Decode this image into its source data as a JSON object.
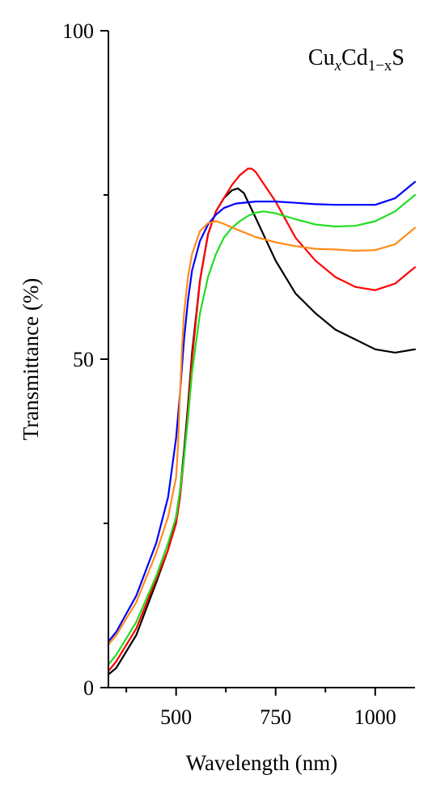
{
  "chart_data": {
    "type": "line",
    "xlabel": "Wavelength (nm)",
    "ylabel": "Transmittance (%)",
    "xlim": [
      330,
      1100
    ],
    "ylim": [
      0,
      100
    ],
    "x_ticks": [
      {
        "value": 500,
        "label": "500"
      },
      {
        "value": 750,
        "label": "750"
      },
      {
        "value": 1000,
        "label": "1000"
      }
    ],
    "x_minor_ticks": [
      375,
      625,
      875
    ],
    "y_ticks": [
      {
        "value": 0,
        "label": "0"
      },
      {
        "value": 50,
        "label": "50"
      },
      {
        "value": 100,
        "label": "100"
      }
    ],
    "y_minor_ticks": [
      25,
      75
    ],
    "annotation": {
      "base1": "Cu",
      "sub1": "x",
      "base2": "Cd",
      "sub2": "1−x",
      "base3": "S"
    },
    "grid": false,
    "legend": "none",
    "series": [
      {
        "color": "#000000",
        "x": [
          330,
          350,
          400,
          450,
          480,
          500,
          510,
          520,
          530,
          540,
          560,
          580,
          600,
          620,
          640,
          655,
          670,
          700,
          750,
          800,
          850,
          900,
          950,
          1000,
          1050,
          1100
        ],
        "y": [
          2,
          3,
          8,
          16,
          21,
          26,
          30,
          36,
          43,
          51,
          62,
          69,
          72.5,
          74.5,
          75.7,
          76,
          75.3,
          71.5,
          65,
          60,
          57,
          54.5,
          53,
          51.5,
          51,
          51.5
        ]
      },
      {
        "color": "#ff0000",
        "x": [
          330,
          350,
          400,
          450,
          480,
          500,
          510,
          520,
          530,
          540,
          560,
          580,
          600,
          620,
          640,
          660,
          680,
          690,
          700,
          750,
          800,
          850,
          900,
          950,
          1000,
          1050,
          1100
        ],
        "y": [
          2.5,
          4,
          9,
          16.5,
          21,
          25,
          29,
          35,
          42,
          50,
          62,
          69,
          72.5,
          74.5,
          76.5,
          78,
          79,
          79,
          78.5,
          74,
          68.5,
          65,
          62.5,
          61,
          60.5,
          61.5,
          64
        ]
      },
      {
        "color": "#22dd22",
        "x": [
          330,
          350,
          400,
          450,
          480,
          500,
          510,
          520,
          530,
          540,
          560,
          580,
          600,
          620,
          640,
          660,
          680,
          700,
          720,
          750,
          800,
          850,
          900,
          950,
          1000,
          1050,
          1100
        ],
        "y": [
          3.5,
          5,
          10,
          17,
          22,
          26,
          30,
          35,
          41,
          48,
          57,
          62.5,
          66,
          68.5,
          70,
          71,
          71.8,
          72.3,
          72.5,
          72.2,
          71.3,
          70.5,
          70.2,
          70.3,
          71,
          72.5,
          75
        ]
      },
      {
        "color": "#0000ff",
        "x": [
          330,
          350,
          400,
          450,
          480,
          500,
          510,
          520,
          530,
          540,
          560,
          580,
          600,
          620,
          650,
          700,
          750,
          800,
          850,
          900,
          950,
          1000,
          1050,
          1100
        ],
        "y": [
          7,
          8.5,
          14,
          22,
          29,
          38,
          45,
          53,
          59,
          63.5,
          68,
          70.5,
          72,
          73,
          73.7,
          74,
          74,
          73.8,
          73.6,
          73.5,
          73.5,
          73.5,
          74.5,
          77
        ]
      },
      {
        "color": "#ff8c1a",
        "x": [
          330,
          350,
          400,
          450,
          480,
          500,
          505,
          510,
          515,
          520,
          530,
          540,
          560,
          580,
          600,
          620,
          650,
          700,
          750,
          800,
          850,
          900,
          950,
          1000,
          1050,
          1100
        ],
        "y": [
          6.5,
          8,
          13,
          20.5,
          26,
          32,
          37,
          45,
          52,
          57,
          62.5,
          66,
          69.5,
          70.7,
          71,
          70.6,
          69.8,
          68.6,
          67.8,
          67.2,
          66.8,
          66.7,
          66.5,
          66.6,
          67.5,
          70
        ]
      }
    ]
  }
}
